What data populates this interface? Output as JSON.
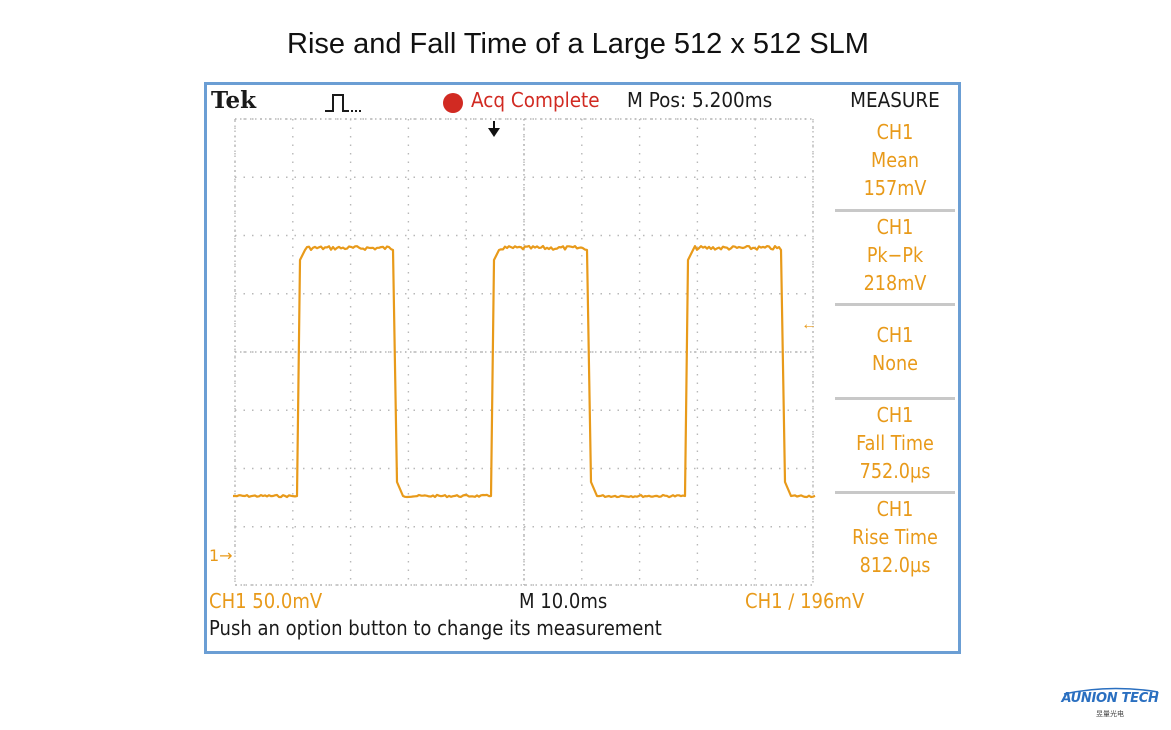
{
  "page": {
    "title": "Rise and Fall Time of a Large 512 x 512 SLM"
  },
  "scope": {
    "brand": "Tek",
    "trigger_mode_icon": "single-pulse-icon",
    "acq_status": "Acq Complete",
    "m_pos": "M Pos: 5.200ms",
    "menu_title": "MEASURE",
    "trigger_position_icon": "down-arrow-icon",
    "ch1_marker": "1→",
    "level_marker_icon": "left-arrow-icon",
    "measurements": [
      {
        "channel": "CH1",
        "name": "Mean",
        "value": "157mV"
      },
      {
        "channel": "CH1",
        "name": "Pk−Pk",
        "value": "218mV"
      },
      {
        "channel": "CH1",
        "name": "None",
        "value": ""
      },
      {
        "channel": "CH1",
        "name": "Fall Time",
        "value": "752.0µs"
      },
      {
        "channel": "CH1",
        "name": "Rise Time",
        "value": "812.0µs"
      }
    ],
    "status": {
      "ch1_scale": "CH1  50.0mV",
      "timebase": "M 10.0ms",
      "trigger": "CH1 ∕ 196mV"
    },
    "help": "Push an option button to change its measurement",
    "colors": {
      "trace": "#e89a1a",
      "acq": "#d12a22",
      "frame": "#6b9ed4",
      "text": "#1a1a1a"
    }
  },
  "logo": {
    "name": "AUNION TECH",
    "sub": "昱量光电"
  }
}
